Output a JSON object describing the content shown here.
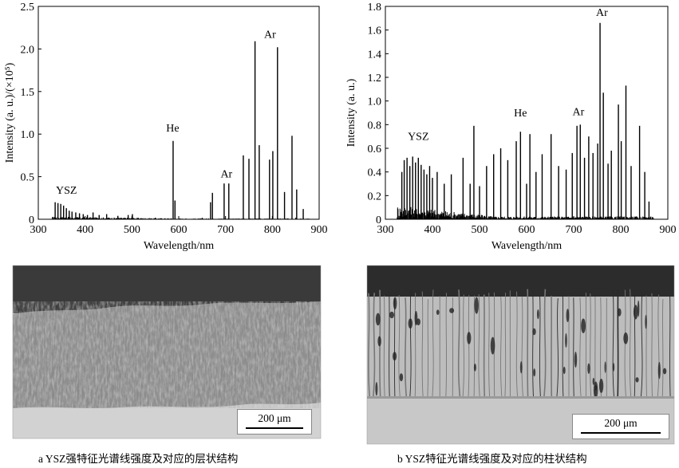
{
  "chart_data": [
    {
      "type": "line",
      "ylabel": "Intensity (a. u.)/(×10⁵)",
      "xlabel": "Wavelength/nm",
      "xlim": [
        300,
        900
      ],
      "ylim": [
        0,
        2.5
      ],
      "xticks": [
        "300",
        "400",
        "500",
        "600",
        "700",
        "800",
        "900"
      ],
      "yticks": [
        "0",
        "0.5",
        "1.0",
        "1.5",
        "2.0",
        "2.5"
      ],
      "annotations": [
        {
          "text": "YSZ",
          "x": 360,
          "y": 0.3
        },
        {
          "text": "He",
          "x": 587,
          "y": 1.03
        },
        {
          "text": "Ar",
          "x": 702,
          "y": 0.49
        },
        {
          "text": "Ar",
          "x": 795,
          "y": 2.13
        }
      ],
      "peaks": [
        [
          336,
          0.2
        ],
        [
          342,
          0.19
        ],
        [
          348,
          0.18
        ],
        [
          354,
          0.16
        ],
        [
          360,
          0.13
        ],
        [
          366,
          0.1
        ],
        [
          372,
          0.09
        ],
        [
          380,
          0.08
        ],
        [
          388,
          0.07
        ],
        [
          396,
          0.06
        ],
        [
          405,
          0.05
        ],
        [
          417,
          0.08
        ],
        [
          430,
          0.05
        ],
        [
          446,
          0.06
        ],
        [
          470,
          0.04
        ],
        [
          492,
          0.05
        ],
        [
          501,
          0.06
        ],
        [
          588,
          0.92
        ],
        [
          592,
          0.22
        ],
        [
          668,
          0.2
        ],
        [
          672,
          0.31
        ],
        [
          697,
          0.42
        ],
        [
          707,
          0.42
        ],
        [
          738,
          0.75
        ],
        [
          750,
          0.71
        ],
        [
          763,
          2.09
        ],
        [
          772,
          0.87
        ],
        [
          794,
          0.7
        ],
        [
          801,
          0.8
        ],
        [
          811,
          2.02
        ],
        [
          826,
          0.32
        ],
        [
          842,
          0.98
        ],
        [
          852,
          0.35
        ],
        [
          866,
          0.12
        ]
      ],
      "noise_range": [
        330,
        880
      ],
      "grid": false
    },
    {
      "type": "line",
      "ylabel": "Intensity (a. u.)",
      "xlabel": "Wavelength/nm",
      "xlim": [
        300,
        900
      ],
      "ylim": [
        0,
        1.8
      ],
      "xticks": [
        "300",
        "400",
        "500",
        "600",
        "700",
        "800",
        "900"
      ],
      "yticks": [
        "0",
        "0.2",
        "0.4",
        "0.6",
        "0.8",
        "1.0",
        "1.2",
        "1.4",
        "1.6",
        "1.8"
      ],
      "annotations": [
        {
          "text": "YSZ",
          "x": 370,
          "y": 0.67
        },
        {
          "text": "He",
          "x": 587,
          "y": 0.87
        },
        {
          "text": "Ar",
          "x": 710,
          "y": 0.88
        },
        {
          "text": "Ar",
          "x": 760,
          "y": 1.72
        }
      ],
      "peaks": [
        [
          335,
          0.4
        ],
        [
          340,
          0.5
        ],
        [
          346,
          0.52
        ],
        [
          352,
          0.45
        ],
        [
          358,
          0.53
        ],
        [
          364,
          0.48
        ],
        [
          370,
          0.52
        ],
        [
          376,
          0.46
        ],
        [
          382,
          0.42
        ],
        [
          388,
          0.38
        ],
        [
          394,
          0.45
        ],
        [
          400,
          0.35
        ],
        [
          410,
          0.4
        ],
        [
          425,
          0.3
        ],
        [
          440,
          0.38
        ],
        [
          465,
          0.52
        ],
        [
          480,
          0.3
        ],
        [
          488,
          0.79
        ],
        [
          500,
          0.28
        ],
        [
          515,
          0.45
        ],
        [
          530,
          0.55
        ],
        [
          545,
          0.6
        ],
        [
          560,
          0.5
        ],
        [
          578,
          0.66
        ],
        [
          587,
          0.74
        ],
        [
          600,
          0.3
        ],
        [
          607,
          0.72
        ],
        [
          620,
          0.4
        ],
        [
          633,
          0.55
        ],
        [
          652,
          0.72
        ],
        [
          668,
          0.45
        ],
        [
          684,
          0.42
        ],
        [
          697,
          0.56
        ],
        [
          707,
          0.79
        ],
        [
          714,
          0.8
        ],
        [
          723,
          0.52
        ],
        [
          732,
          0.7
        ],
        [
          741,
          0.56
        ],
        [
          751,
          0.64
        ],
        [
          756,
          1.66
        ],
        [
          763,
          1.07
        ],
        [
          773,
          0.47
        ],
        [
          780,
          0.58
        ],
        [
          795,
          0.97
        ],
        [
          801,
          0.66
        ],
        [
          811,
          1.13
        ],
        [
          822,
          0.45
        ],
        [
          840,
          0.79
        ],
        [
          851,
          0.4
        ],
        [
          860,
          0.15
        ]
      ],
      "noise_range": [
        325,
        870
      ],
      "grid": false
    }
  ],
  "micrographs": {
    "left_scale": "200 μm",
    "right_scale": "200 μm"
  },
  "captions": {
    "left": "a  YSZ强特征光谱线强度及对应的层状结构",
    "right": "b  YSZ特征光谱线强度及对应的柱状结构"
  }
}
